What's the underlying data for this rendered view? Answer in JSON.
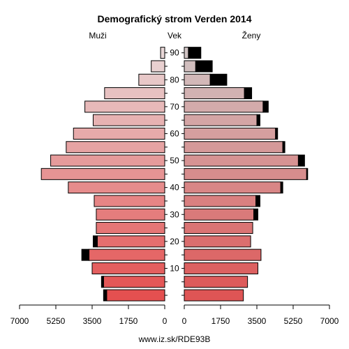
{
  "chart_data": {
    "type": "bar",
    "title": "Demografický strom Verden 2014",
    "left_label": "Muži",
    "center_label": "Vek",
    "right_label": "Ženy",
    "footer": "www.iz.sk/RDE93B",
    "age_groups": [
      "0-4",
      "5-9",
      "10-14",
      "15-19",
      "20-24",
      "25-29",
      "30-34",
      "35-39",
      "40-44",
      "45-49",
      "50-54",
      "55-59",
      "60-64",
      "65-69",
      "70-74",
      "75-79",
      "80-84",
      "85-89",
      "90+"
    ],
    "age_ticks": [
      "10",
      "20",
      "30",
      "40",
      "50",
      "60",
      "70",
      "80",
      "90"
    ],
    "x_ticks": [
      "7000",
      "5250",
      "3500",
      "1750",
      "0",
      "1750",
      "3500",
      "5250",
      "7000"
    ],
    "xlim": [
      0,
      7000
    ],
    "series": [
      {
        "name": "Muži",
        "base": [
          2800,
          2950,
          3500,
          3650,
          3250,
          3300,
          3300,
          3400,
          4650,
          5950,
          5500,
          4750,
          4400,
          3450,
          3850,
          2900,
          1250,
          650,
          200
        ],
        "excess": [
          150,
          100,
          0,
          350,
          200,
          0,
          0,
          0,
          0,
          0,
          0,
          0,
          0,
          0,
          0,
          0,
          0,
          0,
          0
        ]
      },
      {
        "name": "Ženy",
        "base": [
          2850,
          3050,
          3550,
          3700,
          3200,
          3300,
          3350,
          3450,
          4650,
          5900,
          5500,
          4750,
          4400,
          3500,
          3800,
          2900,
          1250,
          550,
          200
        ],
        "excess": [
          0,
          0,
          0,
          0,
          0,
          0,
          200,
          200,
          100,
          50,
          300,
          100,
          100,
          150,
          250,
          350,
          800,
          800,
          600
        ]
      }
    ]
  }
}
